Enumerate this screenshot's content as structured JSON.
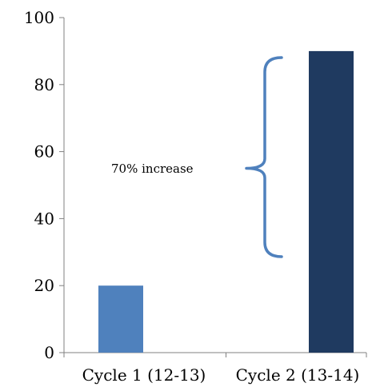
{
  "chart_data": {
    "type": "bar",
    "title": "",
    "xlabel": "",
    "ylabel": "",
    "ylim": [
      0,
      100
    ],
    "yticks": [
      0,
      20,
      40,
      60,
      80,
      100
    ],
    "grid": false,
    "legend": "none",
    "categories": [
      "Cycle 1 (12-13)",
      "Cycle 2 (13-14)"
    ],
    "values": [
      20,
      90
    ],
    "colors": [
      "#4F81BD",
      "#1F3A60"
    ],
    "annotations": [
      {
        "text": "70% increase",
        "type": "curly-brace",
        "from_value": 20,
        "to_value": 90,
        "color": "#4F81BD"
      }
    ]
  }
}
